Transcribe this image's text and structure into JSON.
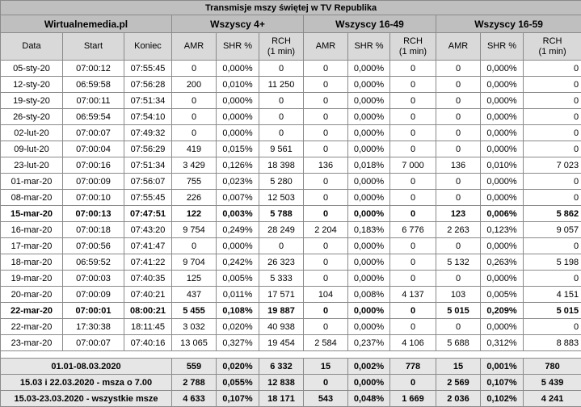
{
  "title": "Transmisje mszy świętej w TV Republika",
  "source": "Wirtualnemedia.pl",
  "groups": [
    "Wszyscy 4+",
    "Wszyscy 16-49",
    "Wszyscy 16-59"
  ],
  "columns": {
    "date": "Data",
    "start": "Start",
    "end": "Koniec",
    "amr": "AMR",
    "shr": "SHR %",
    "rch_line1": "RCH",
    "rch_line2": "(1 min)"
  },
  "rows": [
    {
      "date": "05-sty-20",
      "start": "07:00:12",
      "end": "07:55:45",
      "bold": false,
      "v": [
        "0",
        "0,000%",
        "0",
        "0",
        "0,000%",
        "0",
        "0",
        "0,000%",
        "0"
      ]
    },
    {
      "date": "12-sty-20",
      "start": "06:59:58",
      "end": "07:56:28",
      "bold": false,
      "v": [
        "200",
        "0,010%",
        "11 250",
        "0",
        "0,000%",
        "0",
        "0",
        "0,000%",
        "0"
      ]
    },
    {
      "date": "19-sty-20",
      "start": "07:00:11",
      "end": "07:51:34",
      "bold": false,
      "v": [
        "0",
        "0,000%",
        "0",
        "0",
        "0,000%",
        "0",
        "0",
        "0,000%",
        "0"
      ]
    },
    {
      "date": "26-sty-20",
      "start": "06:59:54",
      "end": "07:54:10",
      "bold": false,
      "v": [
        "0",
        "0,000%",
        "0",
        "0",
        "0,000%",
        "0",
        "0",
        "0,000%",
        "0"
      ]
    },
    {
      "date": "02-lut-20",
      "start": "07:00:07",
      "end": "07:49:32",
      "bold": false,
      "v": [
        "0",
        "0,000%",
        "0",
        "0",
        "0,000%",
        "0",
        "0",
        "0,000%",
        "0"
      ]
    },
    {
      "date": "09-lut-20",
      "start": "07:00:04",
      "end": "07:56:29",
      "bold": false,
      "v": [
        "419",
        "0,015%",
        "9 561",
        "0",
        "0,000%",
        "0",
        "0",
        "0,000%",
        "0"
      ]
    },
    {
      "date": "23-lut-20",
      "start": "07:00:16",
      "end": "07:51:34",
      "bold": false,
      "v": [
        "3 429",
        "0,126%",
        "18 398",
        "136",
        "0,018%",
        "7 000",
        "136",
        "0,010%",
        "7 023"
      ]
    },
    {
      "date": "01-mar-20",
      "start": "07:00:09",
      "end": "07:56:07",
      "bold": false,
      "v": [
        "755",
        "0,023%",
        "5 280",
        "0",
        "0,000%",
        "0",
        "0",
        "0,000%",
        "0"
      ]
    },
    {
      "date": "08-mar-20",
      "start": "07:00:10",
      "end": "07:55:45",
      "bold": false,
      "v": [
        "226",
        "0,007%",
        "12 503",
        "0",
        "0,000%",
        "0",
        "0",
        "0,000%",
        "0"
      ]
    },
    {
      "date": "15-mar-20",
      "start": "07:00:13",
      "end": "07:47:51",
      "bold": true,
      "v": [
        "122",
        "0,003%",
        "5 788",
        "0",
        "0,000%",
        "0",
        "123",
        "0,006%",
        "5 862"
      ]
    },
    {
      "date": "16-mar-20",
      "start": "07:00:18",
      "end": "07:43:20",
      "bold": false,
      "v": [
        "9 754",
        "0,249%",
        "28 249",
        "2 204",
        "0,183%",
        "6 776",
        "2 263",
        "0,123%",
        "9 057"
      ]
    },
    {
      "date": "17-mar-20",
      "start": "07:00:56",
      "end": "07:41:47",
      "bold": false,
      "v": [
        "0",
        "0,000%",
        "0",
        "0",
        "0,000%",
        "0",
        "0",
        "0,000%",
        "0"
      ]
    },
    {
      "date": "18-mar-20",
      "start": "06:59:52",
      "end": "07:41:22",
      "bold": false,
      "v": [
        "9 704",
        "0,242%",
        "26 323",
        "0",
        "0,000%",
        "0",
        "5 132",
        "0,263%",
        "5 198"
      ]
    },
    {
      "date": "19-mar-20",
      "start": "07:00:03",
      "end": "07:40:35",
      "bold": false,
      "v": [
        "125",
        "0,005%",
        "5 333",
        "0",
        "0,000%",
        "0",
        "0",
        "0,000%",
        "0"
      ]
    },
    {
      "date": "20-mar-20",
      "start": "07:00:09",
      "end": "07:40:21",
      "bold": false,
      "v": [
        "437",
        "0,011%",
        "17 571",
        "104",
        "0,008%",
        "4 137",
        "103",
        "0,005%",
        "4 151"
      ]
    },
    {
      "date": "22-mar-20",
      "start": "07:00:01",
      "end": "08:00:21",
      "bold": true,
      "v": [
        "5 455",
        "0,108%",
        "19 887",
        "0",
        "0,000%",
        "0",
        "5 015",
        "0,209%",
        "5 015"
      ]
    },
    {
      "date": "22-mar-20",
      "start": "17:30:38",
      "end": "18:11:45",
      "bold": false,
      "v": [
        "3 032",
        "0,020%",
        "40 938",
        "0",
        "0,000%",
        "0",
        "0",
        "0,000%",
        "0"
      ]
    },
    {
      "date": "23-mar-20",
      "start": "07:00:07",
      "end": "07:40:16",
      "bold": false,
      "v": [
        "13 065",
        "0,327%",
        "19 454",
        "2 584",
        "0,237%",
        "4 106",
        "5 688",
        "0,312%",
        "8 883"
      ]
    }
  ],
  "summary": [
    {
      "label": "01.01-08.03.2020",
      "v": [
        "559",
        "0,020%",
        "6 332",
        "15",
        "0,002%",
        "778",
        "15",
        "0,001%",
        "780"
      ]
    },
    {
      "label": "15.03 i 22.03.2020 - msza o 7.00",
      "v": [
        "2 788",
        "0,055%",
        "12 838",
        "0",
        "0,000%",
        "0",
        "2 569",
        "0,107%",
        "5 439"
      ]
    },
    {
      "label": "15.03-23.03.2020 - wszystkie msze",
      "v": [
        "4 633",
        "0,107%",
        "18 171",
        "543",
        "0,048%",
        "1 669",
        "2 036",
        "0,102%",
        "4 241"
      ]
    }
  ]
}
